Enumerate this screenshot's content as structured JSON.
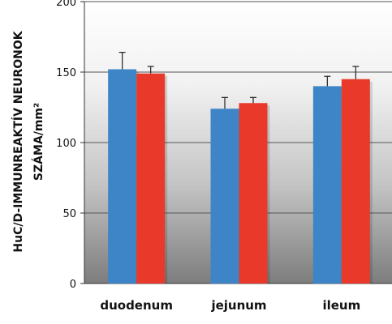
{
  "chart_data": {
    "type": "bar",
    "categories": [
      "duodenum",
      "jejunum",
      "ileum"
    ],
    "series": [
      {
        "color": "#3d85c6",
        "values": [
          152,
          124,
          140
        ],
        "errors": [
          12,
          8,
          7
        ]
      },
      {
        "color": "#e8392a",
        "values": [
          149,
          128,
          145
        ],
        "errors": [
          5,
          4,
          9
        ]
      }
    ],
    "ylabel_lines": [
      "HuC/D-IMMUNREAKTÍV NEURONOK",
      "SZÁMA/mm²"
    ],
    "y_ticks": [
      0,
      50,
      100,
      150,
      200
    ],
    "y_tick_labels": [
      "0",
      "50",
      "100",
      "150",
      "200"
    ],
    "ylim": [
      0,
      200
    ],
    "grid": true
  }
}
